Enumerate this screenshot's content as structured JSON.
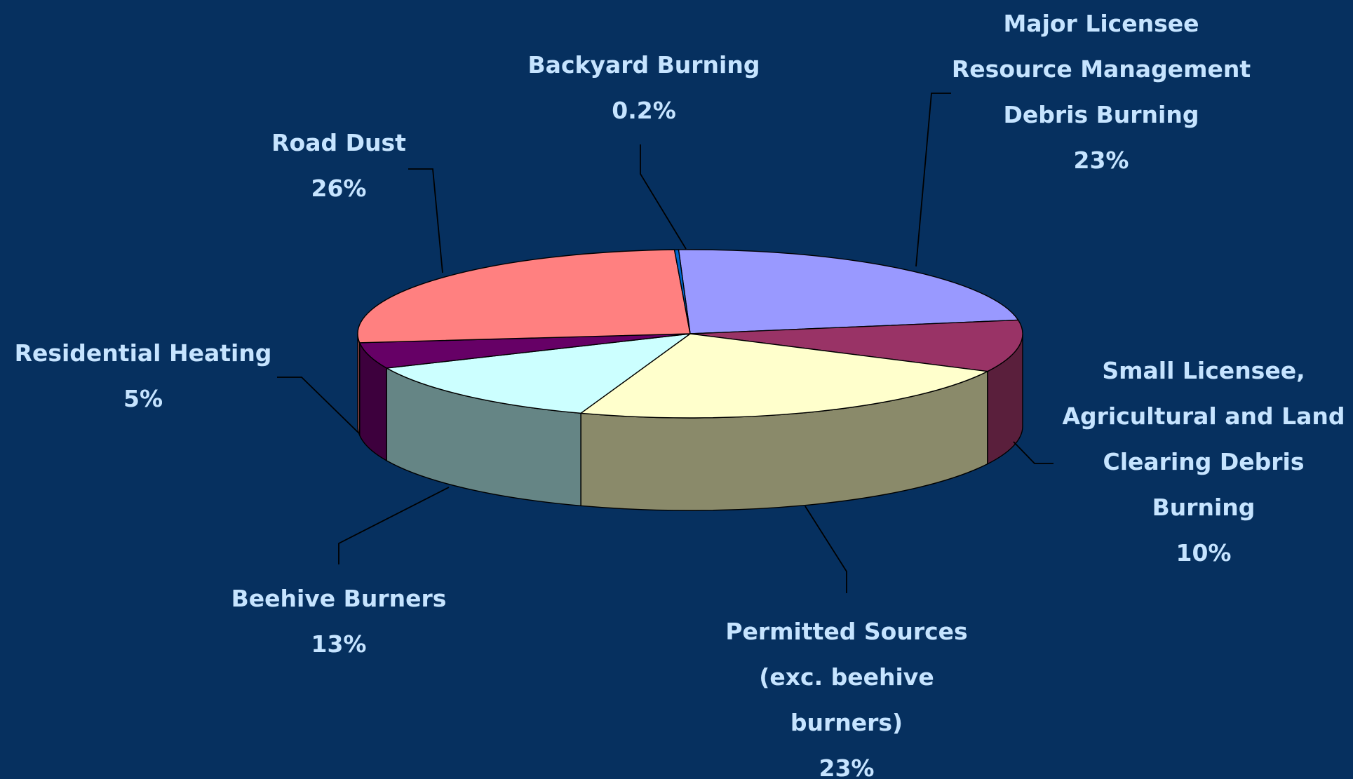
{
  "chart_data": {
    "type": "pie",
    "style": "3d-exploded-off",
    "background": "#06305f",
    "label_color": "#c6e4ff",
    "slices": [
      {
        "label_lines": [
          "Major Licensee",
          "Resource Management",
          "Debris Burning"
        ],
        "value_label": "23%",
        "value": 23,
        "top_color": "#9999ff",
        "side_color": "#55558f"
      },
      {
        "label_lines": [
          "Small Licensee,",
          "Agricultural and Land",
          "Clearing Debris",
          "Burning"
        ],
        "value_label": "10%",
        "value": 10,
        "top_color": "#993366",
        "side_color": "#5a1f3c"
      },
      {
        "label_lines": [
          "Permitted Sources",
          "(exc. beehive",
          "burners)"
        ],
        "value_label": "23%",
        "value": 23,
        "top_color": "#ffffcc",
        "side_color": "#8a8a6a"
      },
      {
        "label_lines": [
          "Beehive Burners"
        ],
        "value_label": "13%",
        "value": 13,
        "top_color": "#ccffff",
        "side_color": "#658585"
      },
      {
        "label_lines": [
          "Residential Heating"
        ],
        "value_label": "5%",
        "value": 5,
        "top_color": "#660066",
        "side_color": "#3d003d"
      },
      {
        "label_lines": [
          "Road Dust"
        ],
        "value_label": "26%",
        "value": 26,
        "top_color": "#ff8080",
        "side_color": "#994c4c"
      },
      {
        "label_lines": [
          "Backyard Burning"
        ],
        "value_label": "0.2%",
        "value": 0.2,
        "top_color": "#0066cc",
        "side_color": "#003d7a"
      }
    ]
  }
}
